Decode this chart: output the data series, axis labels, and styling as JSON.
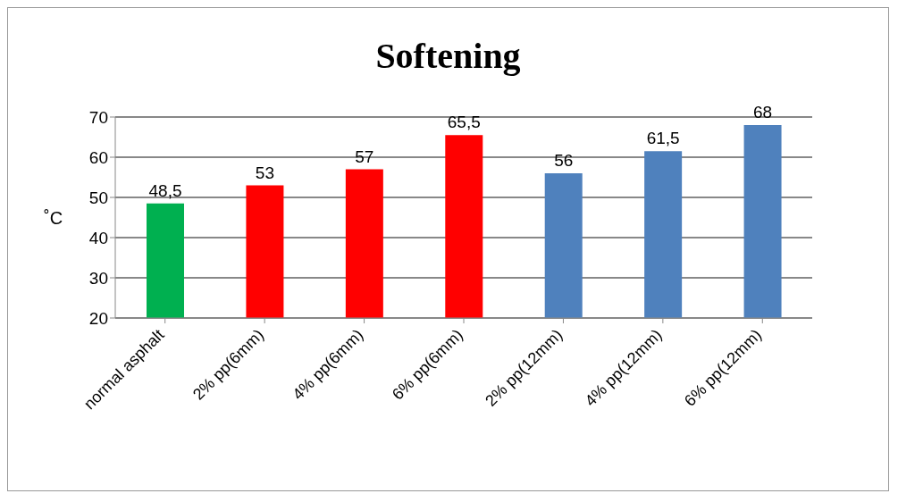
{
  "chart_data": {
    "type": "bar",
    "title": "Softening",
    "ylabel": "˚C",
    "categories": [
      "normal asphalt",
      "2% pp(6mm)",
      "4% pp(6mm)",
      "6% pp(6mm)",
      "2% pp(12mm)",
      "4% pp(12mm)",
      "6% pp(12mm)"
    ],
    "values": [
      48.5,
      53,
      57,
      65.5,
      56,
      61.5,
      68
    ],
    "colors": [
      "#00b050",
      "#ff0000",
      "#ff0000",
      "#ff0000",
      "#4f81bd",
      "#4f81bd",
      "#4f81bd"
    ],
    "value_labels": [
      "48,5",
      "53",
      "57",
      "65,5",
      "56",
      "61,5",
      "68"
    ],
    "ylim": [
      20,
      70
    ],
    "yticks": [
      20,
      30,
      40,
      50,
      60,
      70
    ],
    "grid": "y"
  }
}
